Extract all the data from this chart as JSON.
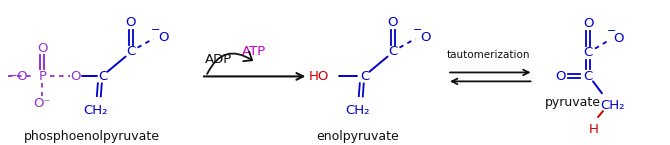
{
  "bg_color": "#ffffff",
  "blue": "#0000cc",
  "purple": "#9933cc",
  "red": "#cc0000",
  "black": "#111111",
  "magenta": "#cc00cc",
  "label_phosphoenolpyruvate": "phosphoenolpyruvate",
  "label_enolpyruvate": "enolpyruvate",
  "label_pyruvate": "pyruvate",
  "label_ADP": "ADP",
  "label_ATP": "ATP",
  "label_tautomerization": "tautomerization",
  "figsize": [
    6.7,
    1.45
  ],
  "dpi": 100
}
